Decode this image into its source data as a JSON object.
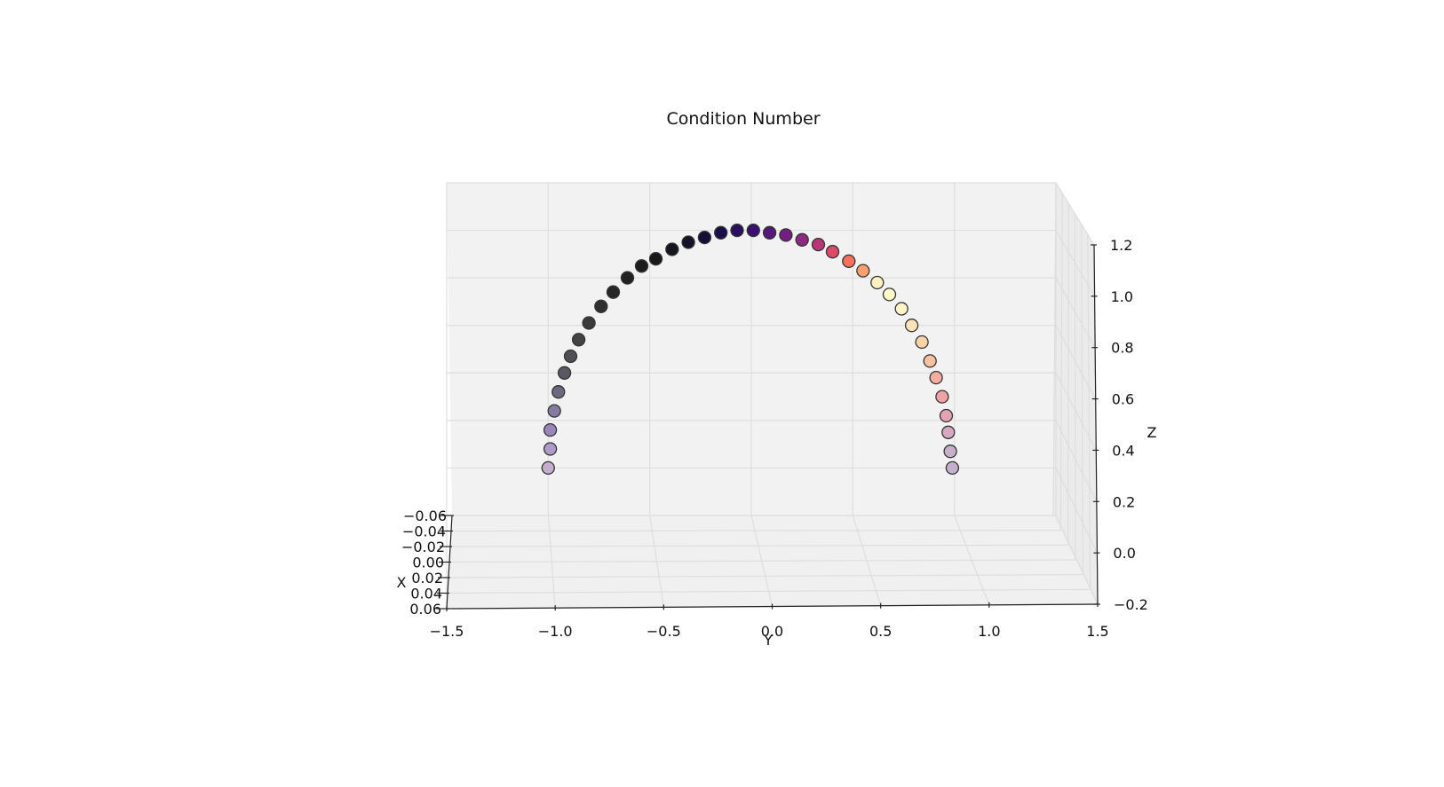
{
  "chart_data": {
    "type": "scatter",
    "projection": "3d",
    "title": "Condition Number",
    "xlabel": "X",
    "ylabel": "Y",
    "zlabel": "Z",
    "x_ticks": [
      "−0.06",
      "−0.04",
      "−0.02",
      "0.00",
      "0.02",
      "0.04",
      "0.06"
    ],
    "y_ticks": [
      "−1.5",
      "−1.0",
      "−0.5",
      "0.0",
      "0.5",
      "1.0",
      "1.5"
    ],
    "z_ticks": [
      "−0.2",
      "0.0",
      "0.2",
      "0.4",
      "0.6",
      "0.8",
      "1.0",
      "1.2"
    ],
    "xlim": [
      -0.06,
      0.06
    ],
    "ylim": [
      -1.5,
      1.5
    ],
    "zlim": [
      -0.2,
      1.2
    ],
    "grid": true,
    "colormap": "magma",
    "marker_edge": "#333333",
    "points": [
      {
        "x": 0,
        "y": -1.0,
        "z": 0.0,
        "color": "#c4aece"
      },
      {
        "x": 0,
        "y": -0.99,
        "z": 0.08,
        "color": "#ae9acb"
      },
      {
        "x": 0,
        "y": -0.99,
        "z": 0.16,
        "color": "#9a86bb"
      },
      {
        "x": 0,
        "y": -0.97,
        "z": 0.24,
        "color": "#857ba2"
      },
      {
        "x": 0,
        "y": -0.95,
        "z": 0.32,
        "color": "#6c6880"
      },
      {
        "x": 0,
        "y": -0.92,
        "z": 0.4,
        "color": "#5a5963"
      },
      {
        "x": 0,
        "y": -0.89,
        "z": 0.47,
        "color": "#4f4f55"
      },
      {
        "x": 0,
        "y": -0.85,
        "z": 0.54,
        "color": "#434344"
      },
      {
        "x": 0,
        "y": -0.8,
        "z": 0.61,
        "color": "#3a3a3a"
      },
      {
        "x": 0,
        "y": -0.74,
        "z": 0.68,
        "color": "#2f2f2f"
      },
      {
        "x": 0,
        "y": -0.68,
        "z": 0.74,
        "color": "#272727"
      },
      {
        "x": 0,
        "y": -0.61,
        "z": 0.8,
        "color": "#212121"
      },
      {
        "x": 0,
        "y": -0.54,
        "z": 0.85,
        "color": "#1c1c1d"
      },
      {
        "x": 0,
        "y": -0.47,
        "z": 0.88,
        "color": "#19191d"
      },
      {
        "x": 0,
        "y": -0.39,
        "z": 0.92,
        "color": "#16161f"
      },
      {
        "x": 0,
        "y": -0.31,
        "z": 0.95,
        "color": "#141328"
      },
      {
        "x": 0,
        "y": -0.23,
        "z": 0.97,
        "color": "#140f38"
      },
      {
        "x": 0,
        "y": -0.15,
        "z": 0.99,
        "color": "#1a0f4a"
      },
      {
        "x": 0,
        "y": -0.07,
        "z": 1.0,
        "color": "#2a1160"
      },
      {
        "x": 0,
        "y": 0.01,
        "z": 1.0,
        "color": "#3b0f70"
      },
      {
        "x": 0,
        "y": 0.09,
        "z": 0.99,
        "color": "#57157e"
      },
      {
        "x": 0,
        "y": 0.17,
        "z": 0.98,
        "color": "#721f81"
      },
      {
        "x": 0,
        "y": 0.25,
        "z": 0.96,
        "color": "#8c2981"
      },
      {
        "x": 0,
        "y": 0.33,
        "z": 0.94,
        "color": "#b73779"
      },
      {
        "x": 0,
        "y": 0.4,
        "z": 0.91,
        "color": "#de4968"
      },
      {
        "x": 0,
        "y": 0.48,
        "z": 0.87,
        "color": "#f7705c"
      },
      {
        "x": 0,
        "y": 0.55,
        "z": 0.83,
        "color": "#fe9f6d"
      },
      {
        "x": 0,
        "y": 0.62,
        "z": 0.78,
        "color": "#fef0c0"
      },
      {
        "x": 0,
        "y": 0.68,
        "z": 0.73,
        "color": "#fdf9c9"
      },
      {
        "x": 0,
        "y": 0.74,
        "z": 0.67,
        "color": "#fdf3c6"
      },
      {
        "x": 0,
        "y": 0.79,
        "z": 0.6,
        "color": "#fde4b7"
      },
      {
        "x": 0,
        "y": 0.84,
        "z": 0.53,
        "color": "#fdd2a6"
      },
      {
        "x": 0,
        "y": 0.88,
        "z": 0.45,
        "color": "#fbc1a2"
      },
      {
        "x": 0,
        "y": 0.91,
        "z": 0.38,
        "color": "#f6ad9f"
      },
      {
        "x": 0,
        "y": 0.94,
        "z": 0.3,
        "color": "#f0a3a5"
      },
      {
        "x": 0,
        "y": 0.96,
        "z": 0.22,
        "color": "#e3a3b5"
      },
      {
        "x": 0,
        "y": 0.97,
        "z": 0.15,
        "color": "#d6a8c2"
      },
      {
        "x": 0,
        "y": 0.98,
        "z": 0.07,
        "color": "#c9afc9"
      },
      {
        "x": 0,
        "y": 0.99,
        "z": 0.0,
        "color": "#c2b0cc"
      }
    ]
  }
}
